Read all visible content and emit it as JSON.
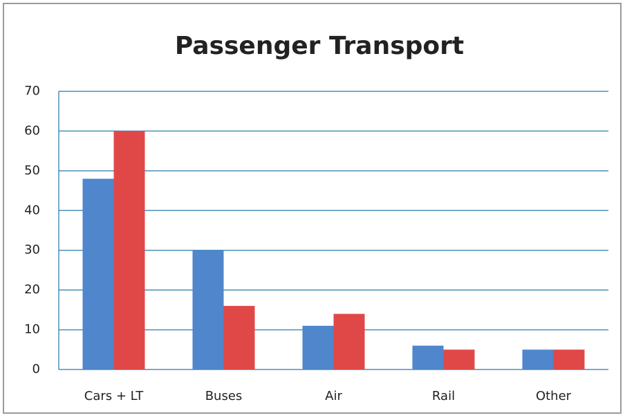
{
  "chart_data": {
    "type": "bar",
    "title": "Passenger Transport",
    "categories": [
      "Cars + LT",
      "Buses",
      "Air",
      "Rail",
      "Other"
    ],
    "series": [
      {
        "color": "#4f86cc",
        "values": [
          48,
          30,
          11,
          6,
          5
        ]
      },
      {
        "color": "#e04848",
        "values": [
          60,
          16,
          14,
          5,
          5
        ]
      }
    ],
    "ylim": [
      0,
      70
    ],
    "yticks": [
      0,
      10,
      20,
      30,
      40,
      50,
      60,
      70
    ],
    "grid": true
  }
}
